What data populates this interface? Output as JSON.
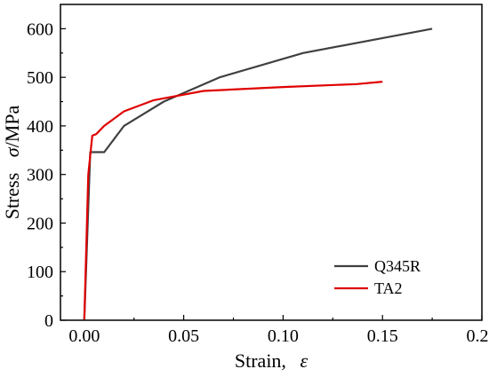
{
  "chart_data": {
    "type": "line",
    "title": "",
    "xlabel": "Strain,",
    "xlabel_symbol": "ε",
    "ylabel": "Stress",
    "ylabel_symbol": "σ",
    "ylabel_unit": "/MPa",
    "xlim": [
      -0.012,
      0.2
    ],
    "ylim": [
      0,
      650
    ],
    "x_ticks": [
      0.0,
      0.05,
      0.1,
      0.15,
      0.2
    ],
    "x_tick_labels": [
      "0.00",
      "0.05",
      "0.10",
      "0.15",
      "0.20"
    ],
    "y_ticks": [
      0,
      100,
      200,
      300,
      400,
      500,
      600
    ],
    "y_tick_labels": [
      "0",
      "100",
      "200",
      "300",
      "400",
      "500",
      "600"
    ],
    "grid": false,
    "legend_position": "bottom-right",
    "series": [
      {
        "name": "Q345R",
        "color": "#404040",
        "x": [
          0.0,
          0.003,
          0.01,
          0.02,
          0.04,
          0.068,
          0.11,
          0.14,
          0.175
        ],
        "y": [
          0,
          346,
          346,
          400,
          450,
          500,
          550,
          573,
          600
        ]
      },
      {
        "name": "TA2",
        "color": "#e00000",
        "x": [
          0.0,
          0.002,
          0.004,
          0.006,
          0.01,
          0.02,
          0.035,
          0.06,
          0.1,
          0.137,
          0.15
        ],
        "y": [
          0,
          300,
          380,
          383,
          400,
          430,
          453,
          472,
          480,
          486,
          491
        ]
      }
    ]
  }
}
